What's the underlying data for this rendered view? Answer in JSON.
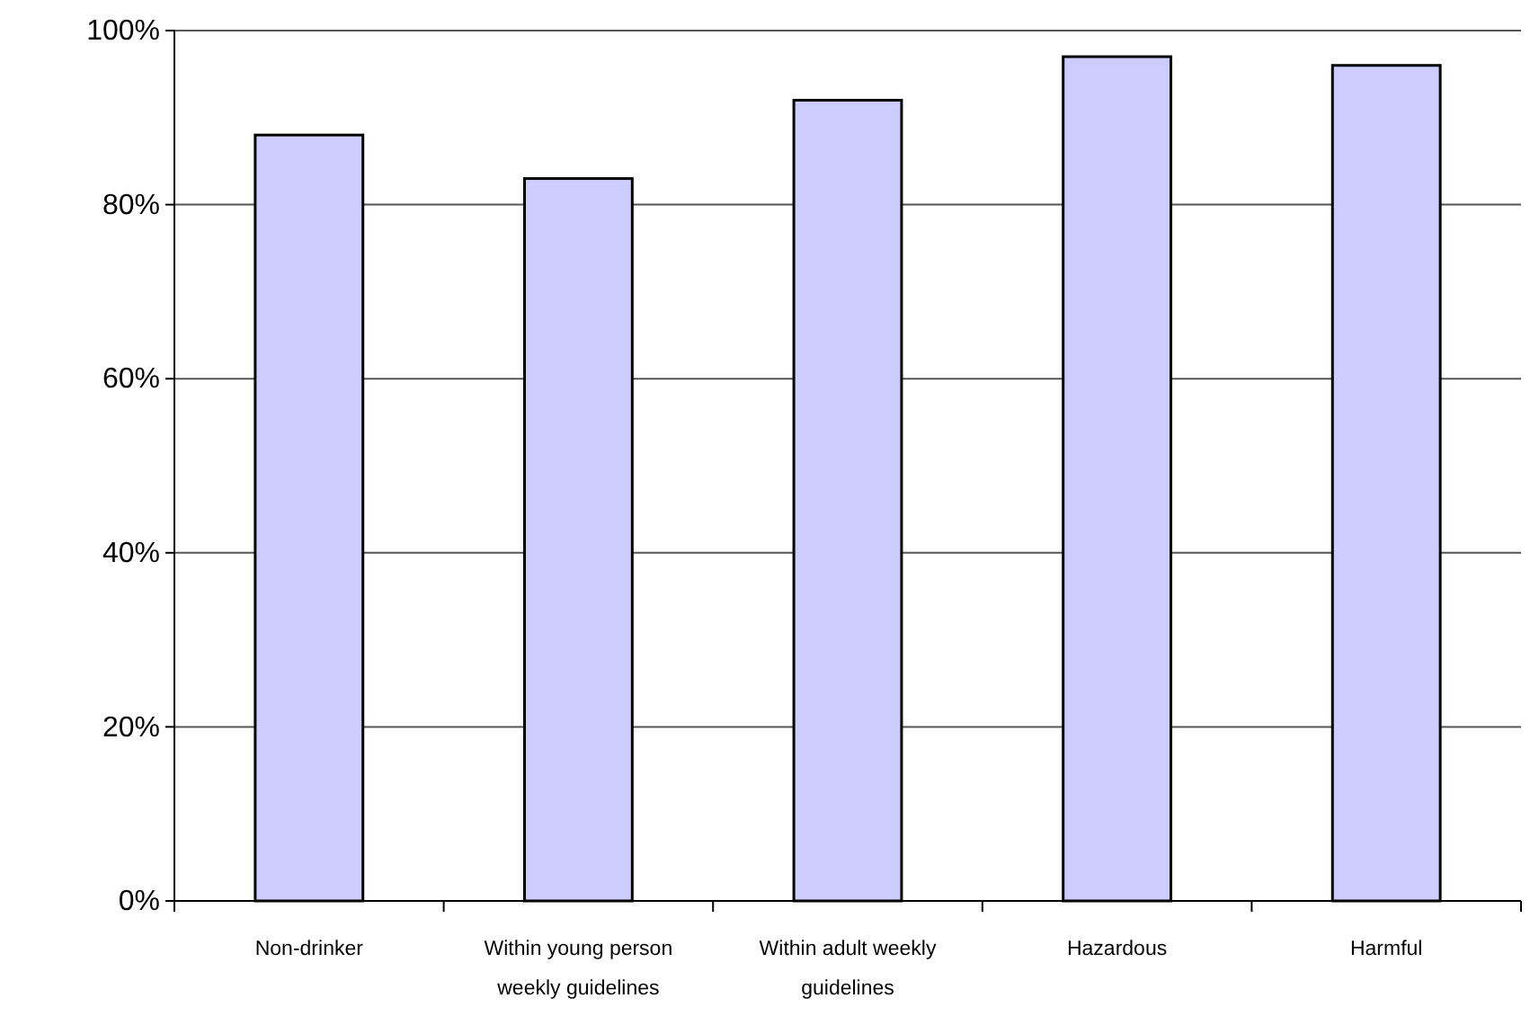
{
  "chart_data": {
    "type": "bar",
    "categories": [
      "Non-drinker",
      "Within young person weekly guidelines",
      "Within adult weekly guidelines",
      "Hazardous",
      "Harmful"
    ],
    "values": [
      88,
      83,
      92,
      97,
      96
    ],
    "color": "#ccccff",
    "ylim": [
      0,
      100
    ],
    "yticks": [
      {
        "value": 0,
        "label": "0%"
      },
      {
        "value": 20,
        "label": "20%"
      },
      {
        "value": 40,
        "label": "40%"
      },
      {
        "value": 60,
        "label": "60%"
      },
      {
        "value": 80,
        "label": "80%"
      },
      {
        "value": 100,
        "label": "100%"
      }
    ],
    "grid": "y"
  }
}
